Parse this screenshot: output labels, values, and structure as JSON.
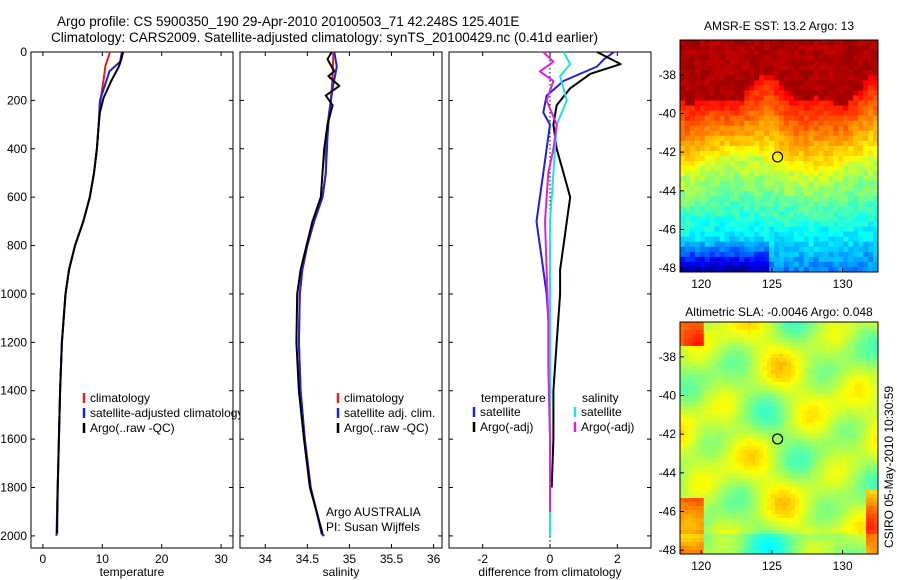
{
  "header": {
    "line1": "Argo profile: CS 5900350_190 29-Apr-2010 20100503_71 42.248S 125.401E",
    "line2": "Climatology: CARS2009. Satellite-adjusted climatology: synTS_20100429.nc (0.41d earlier)"
  },
  "side_label": "CSIRO 05-May-2010 10:30:59",
  "colors": {
    "climatology": "#e0201e",
    "satellite": "#2020e0",
    "argo": "#000000",
    "satellite_salinity": "#20e0e0",
    "argo_adj_salinity": "#e020e0"
  },
  "chart_data": [
    {
      "type": "line",
      "id": "temperature",
      "xlabel": "temperature",
      "ylabel": "",
      "xlim": [
        -2,
        32
      ],
      "ylim": [
        2050,
        0
      ],
      "xticks": [
        0,
        10,
        20,
        30
      ],
      "yticks": [
        0,
        200,
        400,
        600,
        800,
        1000,
        1200,
        1400,
        1600,
        1800,
        2000
      ],
      "legend": [
        "climatology",
        "satellite-adjusted climatology",
        "Argo(..raw -QC)"
      ],
      "series": [
        {
          "name": "climatology",
          "color_key": "climatology",
          "x": [
            11.3,
            10.5,
            10.3,
            9.7,
            9.4,
            9.1,
            8.6,
            7.9,
            6.8,
            5.4,
            4.4,
            3.8,
            3.2,
            2.9,
            2.7,
            2.5,
            2.4
          ],
          "y": [
            0,
            60,
            100,
            200,
            300,
            400,
            500,
            600,
            700,
            800,
            900,
            1000,
            1200,
            1400,
            1600,
            1800,
            1880
          ]
        },
        {
          "name": "satellite-adjusted climatology",
          "color_key": "satellite",
          "x": [
            13.3,
            13.0,
            11.2,
            9.6,
            9.4,
            9.1,
            8.6,
            7.9,
            6.8,
            5.4,
            4.4,
            3.8,
            3.2,
            2.9,
            2.7,
            2.5,
            2.4,
            2.3
          ],
          "y": [
            0,
            40,
            80,
            200,
            300,
            400,
            500,
            600,
            700,
            800,
            900,
            1000,
            1200,
            1400,
            1600,
            1800,
            1900,
            2000
          ]
        },
        {
          "name": "Argo(..raw -QC)",
          "color_key": "argo",
          "x": [
            13.5,
            13.2,
            12.8,
            11.5,
            10.2,
            9.6,
            9.4,
            9.1,
            8.6,
            7.9,
            6.8,
            5.4,
            4.4,
            3.8,
            3.2,
            2.9,
            2.7,
            2.5,
            2.4
          ],
          "y": [
            0,
            30,
            60,
            120,
            190,
            250,
            300,
            400,
            500,
            600,
            700,
            800,
            900,
            1000,
            1200,
            1400,
            1600,
            1800,
            1990
          ]
        }
      ]
    },
    {
      "type": "line",
      "id": "salinity",
      "xlabel": "salinity",
      "ylabel": "",
      "xlim": [
        33.7,
        36.1
      ],
      "ylim": [
        2050,
        0
      ],
      "xticks": [
        34,
        34.5,
        35,
        35.5,
        36
      ],
      "yticks": [],
      "legend": [
        "climatology",
        "satellite adj. clim.",
        "Argo(..raw -QC)"
      ],
      "annotation": [
        "Argo AUSTRALIA",
        "PI: Susan Wijffels"
      ],
      "series": [
        {
          "name": "climatology",
          "color_key": "climatology",
          "x": [
            34.81,
            34.8,
            34.78,
            34.74,
            34.72,
            34.72,
            34.68,
            34.58,
            34.5,
            34.44,
            34.41,
            34.4,
            34.42,
            34.47,
            34.54,
            34.61,
            34.67,
            34.69
          ],
          "y": [
            0,
            100,
            200,
            300,
            400,
            500,
            600,
            700,
            800,
            900,
            1000,
            1200,
            1400,
            1600,
            1800,
            1900,
            1990,
            2000
          ]
        },
        {
          "name": "satellite adj. clim.",
          "color_key": "satellite",
          "x": [
            34.82,
            34.85,
            34.8,
            34.76,
            34.74,
            34.72,
            34.68,
            34.58,
            34.5,
            34.44,
            34.41,
            34.4,
            34.42,
            34.47,
            34.54,
            34.61,
            34.67,
            34.7
          ],
          "y": [
            0,
            60,
            150,
            250,
            350,
            500,
            600,
            700,
            800,
            900,
            1000,
            1200,
            1400,
            1600,
            1800,
            1900,
            1990,
            2000
          ]
        },
        {
          "name": "Argo(..raw -QC)",
          "color_key": "argo",
          "x": [
            34.79,
            34.74,
            34.82,
            34.75,
            34.88,
            34.72,
            34.8,
            34.74,
            34.7,
            34.66,
            34.56,
            34.49,
            34.42,
            34.38,
            34.37,
            34.4,
            34.46,
            34.53,
            34.61,
            34.68
          ],
          "y": [
            0,
            30,
            80,
            100,
            140,
            180,
            220,
            300,
            400,
            600,
            700,
            800,
            900,
            1000,
            1200,
            1400,
            1600,
            1800,
            1900,
            1990
          ]
        }
      ]
    },
    {
      "type": "line",
      "id": "difference",
      "xlabel": "difference from climatology",
      "ylabel": "",
      "xlim": [
        -3,
        3
      ],
      "ylim": [
        2050,
        0
      ],
      "xticks": [
        -2,
        0,
        2
      ],
      "yticks": [],
      "legend_left_title": "temperature",
      "legend_left": [
        "satellite",
        "Argo(-adj)"
      ],
      "legend_right_title": "salinity",
      "legend_right": [
        "satellite",
        "Argo(-adj)"
      ],
      "series": [
        {
          "name": "temperature satellite",
          "color_key": "satellite",
          "x": [
            1.9,
            1.6,
            1.4,
            0.4,
            -0.1,
            -0.2,
            0,
            -0.1,
            -0.2,
            -0.3,
            -0.4,
            -0.3,
            -0.2,
            -0.1,
            0,
            0,
            0,
            0
          ],
          "y": [
            0,
            30,
            60,
            120,
            180,
            250,
            300,
            400,
            500,
            600,
            700,
            800,
            900,
            1000,
            1200,
            1400,
            1600,
            1800
          ]
        },
        {
          "name": "temperature Argo(-adj)",
          "color_key": "argo",
          "x": [
            1.4,
            2.1,
            1.2,
            0.6,
            0.2,
            0.1,
            0.2,
            0.4,
            0.6,
            0.5,
            0.4,
            0.3,
            0.3,
            0.2,
            0.1,
            0.1,
            0.05
          ],
          "y": [
            0,
            50,
            90,
            150,
            220,
            300,
            400,
            500,
            600,
            700,
            800,
            900,
            1000,
            1200,
            1400,
            1600,
            1800
          ]
        },
        {
          "name": "salinity satellite",
          "color_key": "satellite_salinity",
          "x": [
            0.4,
            0.6,
            0.3,
            0.5,
            0.2,
            0.15,
            0.1,
            0.05,
            0,
            0,
            0,
            0,
            0,
            0,
            0
          ],
          "y": [
            0,
            50,
            100,
            200,
            300,
            400,
            500,
            600,
            700,
            800,
            1000,
            1200,
            1400,
            1600,
            2000
          ]
        },
        {
          "name": "salinity Argo(-adj)",
          "color_key": "argo_adj_salinity",
          "x": [
            -0.2,
            0.1,
            -0.3,
            0.1,
            -0.1,
            0.2,
            0.1,
            -0.05,
            -0.1,
            -0.15,
            -0.1,
            -0.05,
            -0.05,
            0,
            0
          ],
          "y": [
            0,
            40,
            80,
            120,
            200,
            300,
            400,
            500,
            600,
            700,
            900,
            1100,
            1300,
            1600,
            1900
          ]
        }
      ]
    },
    {
      "type": "heatmap",
      "id": "sst",
      "title": "AMSR-E SST: 13.2 Argo: 13",
      "xlim": [
        118.5,
        132.5
      ],
      "ylim": [
        -48.2,
        -36.2
      ],
      "xticks": [
        120,
        125,
        130
      ],
      "yticks": [
        -38,
        -40,
        -42,
        -44,
        -46,
        -48
      ],
      "marker": {
        "lon": 125.401,
        "lat": -42.248
      }
    },
    {
      "type": "heatmap",
      "id": "sla",
      "title": "Altimetric SLA: -0.0046 Argo: 0.048",
      "xlim": [
        118.5,
        132.5
      ],
      "ylim": [
        -48.2,
        -36.2
      ],
      "xticks": [
        120,
        125,
        130
      ],
      "yticks": [
        -38,
        -40,
        -42,
        -44,
        -46,
        -48
      ],
      "marker": {
        "lon": 125.401,
        "lat": -42.248
      }
    }
  ]
}
